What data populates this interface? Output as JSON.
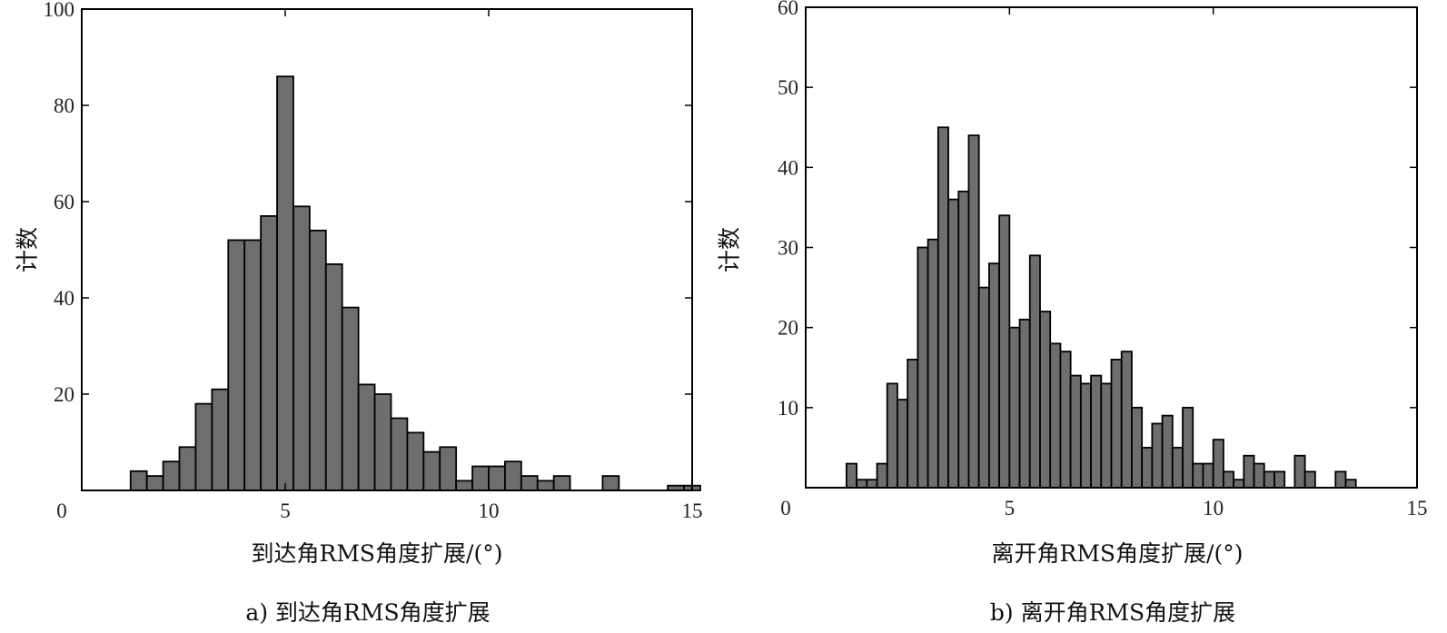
{
  "chart_data": [
    {
      "type": "bar",
      "ylabel": "计数",
      "xlabel": "到达角RMS角度扩展/(°)",
      "caption": "a) 到达角RMS角度扩展",
      "xlim": [
        0,
        15
      ],
      "ylim": [
        0,
        100
      ],
      "xticks": [
        "0",
        "5",
        "10",
        "15"
      ],
      "yticks": [
        "0",
        "20",
        "40",
        "60",
        "80",
        "100"
      ],
      "xtick_values": [
        0,
        5,
        10,
        15
      ],
      "ytick_values": [
        0,
        20,
        40,
        60,
        80,
        100
      ],
      "bin_width": 0.4,
      "x": [
        1.2,
        1.6,
        2.0,
        2.4,
        2.8,
        3.2,
        3.6,
        4.0,
        4.4,
        4.8,
        5.2,
        5.6,
        6.0,
        6.4,
        6.8,
        7.2,
        7.6,
        8.0,
        8.4,
        8.8,
        9.2,
        9.6,
        10.0,
        10.4,
        10.8,
        11.2,
        11.6,
        12.4,
        12.8,
        14.0,
        14.4,
        14.8
      ],
      "values": [
        4,
        3,
        6,
        9,
        18,
        21,
        52,
        52,
        57,
        86,
        59,
        54,
        47,
        38,
        22,
        20,
        15,
        12,
        8,
        9,
        2,
        5,
        5,
        6,
        3,
        2,
        3,
        0,
        3,
        0,
        1,
        1
      ],
      "grid": false
    },
    {
      "type": "bar",
      "ylabel": "计数",
      "xlabel": "离开角RMS角度扩展/(°)",
      "caption": "b) 离开角RMS角度扩展",
      "xlim": [
        0,
        15
      ],
      "ylim": [
        0,
        60
      ],
      "xticks": [
        "0",
        "5",
        "10",
        "15"
      ],
      "yticks": [
        "0",
        "10",
        "20",
        "30",
        "40",
        "50",
        "60"
      ],
      "xtick_values": [
        0,
        5,
        10,
        15
      ],
      "ytick_values": [
        0,
        10,
        20,
        30,
        40,
        50,
        60
      ],
      "bin_width": 0.25,
      "x": [
        1.0,
        1.25,
        1.5,
        1.75,
        2.0,
        2.25,
        2.5,
        2.75,
        3.0,
        3.25,
        3.5,
        3.75,
        4.0,
        4.25,
        4.5,
        4.75,
        5.0,
        5.25,
        5.5,
        5.75,
        6.0,
        6.25,
        6.5,
        6.75,
        7.0,
        7.25,
        7.5,
        7.75,
        8.0,
        8.25,
        8.5,
        8.75,
        9.0,
        9.25,
        9.5,
        9.75,
        10.0,
        10.25,
        10.5,
        10.75,
        11.0,
        11.25,
        11.5,
        11.75,
        12.0,
        12.25,
        12.5,
        12.75,
        13.0,
        13.25,
        13.5
      ],
      "values": [
        3,
        1,
        1,
        3,
        13,
        11,
        16,
        30,
        31,
        45,
        36,
        37,
        44,
        25,
        28,
        34,
        20,
        21,
        29,
        22,
        18,
        17,
        14,
        13,
        14,
        13,
        16,
        17,
        10,
        5,
        8,
        9,
        5,
        10,
        3,
        3,
        6,
        2,
        1,
        4,
        3,
        2,
        2,
        0,
        4,
        2,
        0,
        0,
        2,
        1,
        0
      ],
      "grid": false
    }
  ]
}
